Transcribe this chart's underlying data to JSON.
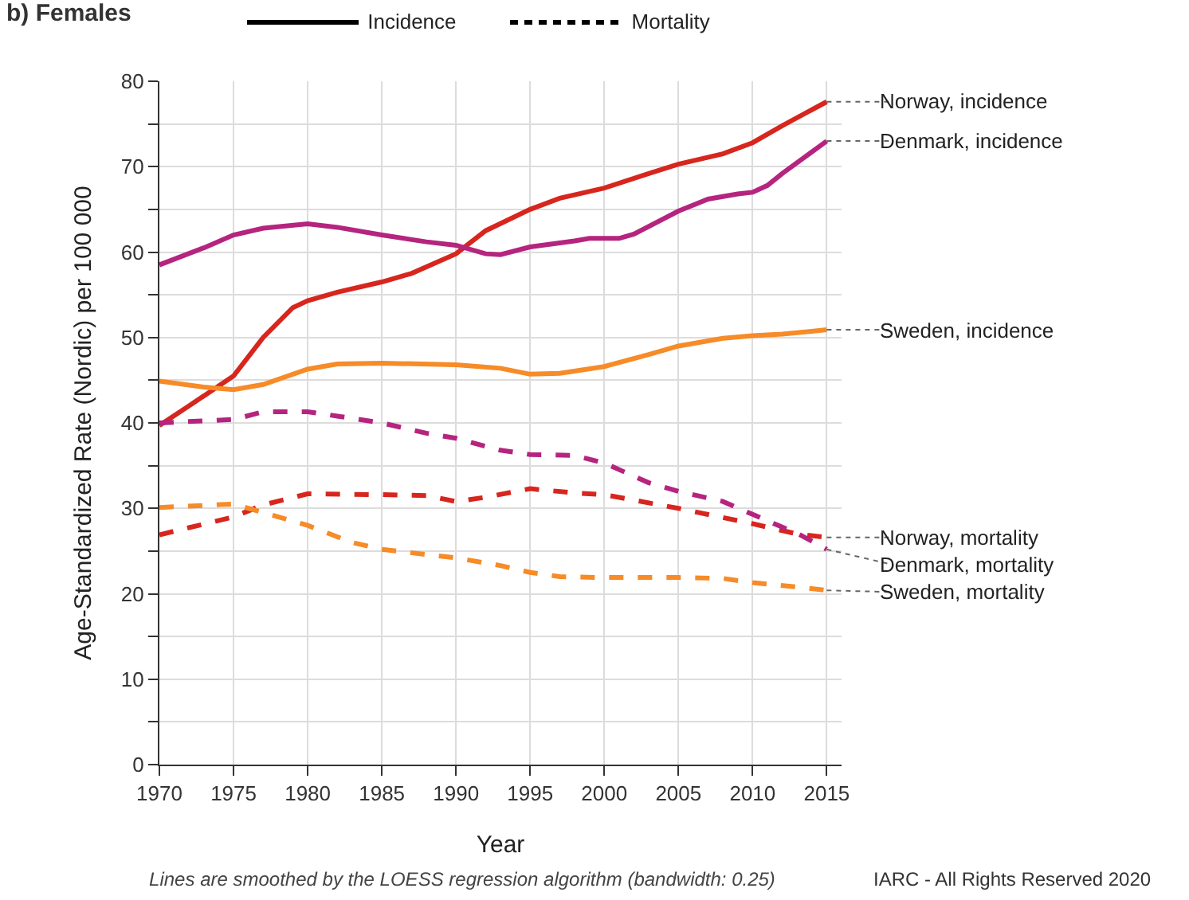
{
  "chart_data": {
    "type": "line",
    "title": "b) Females",
    "xlabel": "Year",
    "ylabel": "Age-Standardized Rate (Nordic) per 100 000",
    "annotations": [
      "Incidence",
      "Mortality",
      "Lines are smoothed by the LOESS regression algorithm (bandwidth: 0.25)",
      "IARC - All Rights Reserved 2020"
    ],
    "xlim": [
      1970,
      2016
    ],
    "xticks": [
      1970,
      1975,
      1980,
      1985,
      1990,
      1995,
      2000,
      2005,
      2010,
      2015
    ],
    "ylim": [
      0,
      80
    ],
    "yticks": [
      0,
      {
        "value": 5,
        "label": null
      },
      10,
      {
        "value": 15,
        "label": null
      },
      20,
      {
        "value": 25,
        "label": null
      },
      30,
      {
        "value": 35,
        "label": null
      },
      40,
      {
        "value": 45,
        "label": null
      },
      50,
      {
        "value": 55,
        "label": null
      },
      60,
      {
        "value": 65,
        "label": null
      },
      70,
      {
        "value": 75,
        "label": null
      },
      80
    ],
    "grid": true,
    "marker": "none",
    "series": [
      {
        "name": "Norway, incidence",
        "color": "#d7261e",
        "line_style": "solid",
        "x": [
          1970,
          1972,
          1975,
          1977,
          1979,
          1980,
          1982,
          1985,
          1987,
          1990,
          1992,
          1995,
          1997,
          2000,
          2003,
          2005,
          2008,
          2010,
          2012,
          2015
        ],
        "values": [
          39.7,
          42,
          45.5,
          50,
          53.5,
          54.3,
          55.3,
          56.5,
          57.5,
          59.8,
          62.5,
          65,
          66.3,
          67.5,
          69.2,
          70.3,
          71.5,
          72.8,
          74.8,
          77.6
        ]
      },
      {
        "name": "Denmark, incidence",
        "color": "#b5247f",
        "line_style": "solid",
        "x": [
          1970,
          1973,
          1975,
          1977,
          1980,
          1982,
          1985,
          1988,
          1990,
          1992,
          1993,
          1995,
          1998,
          1999,
          2001,
          2002,
          2005,
          2007,
          2009,
          2010,
          2011,
          2012,
          2015
        ],
        "values": [
          58.5,
          60.5,
          62,
          62.8,
          63.3,
          62.9,
          62,
          61.2,
          60.8,
          59.8,
          59.7,
          60.6,
          61.3,
          61.6,
          61.6,
          62.1,
          64.8,
          66.2,
          66.8,
          67,
          67.8,
          69.2,
          73
        ]
      },
      {
        "name": "Sweden, incidence",
        "color": "#f68b28",
        "line_style": "solid",
        "x": [
          1970,
          1973,
          1975,
          1977,
          1980,
          1982,
          1985,
          1990,
          1993,
          1995,
          1997,
          2000,
          2003,
          2005,
          2008,
          2010,
          2012,
          2015
        ],
        "values": [
          44.9,
          44.2,
          43.9,
          44.5,
          46.3,
          46.9,
          47,
          46.8,
          46.4,
          45.7,
          45.8,
          46.6,
          48,
          49,
          49.9,
          50.2,
          50.4,
          50.9
        ]
      },
      {
        "name": "Norway, mortality",
        "color": "#d7261e",
        "line_style": "dashed",
        "x": [
          1970,
          1975,
          1977,
          1980,
          1985,
          1988,
          1990,
          1992,
          1995,
          1998,
          2000,
          2005,
          2010,
          2013,
          2015
        ],
        "values": [
          26.9,
          29,
          30.4,
          31.7,
          31.6,
          31.5,
          30.8,
          31.3,
          32.3,
          31.8,
          31.6,
          30,
          28.2,
          27,
          26.6
        ]
      },
      {
        "name": "Denmark, mortality",
        "color": "#b5247f",
        "line_style": "dashed",
        "x": [
          1970,
          1975,
          1977,
          1980,
          1982,
          1985,
          1988,
          1990,
          1993,
          1995,
          1998,
          2000,
          2003,
          2005,
          2008,
          2010,
          2012,
          2013,
          2015
        ],
        "values": [
          40,
          40.4,
          41.3,
          41.3,
          40.8,
          40,
          38.8,
          38.2,
          36.8,
          36.3,
          36.2,
          35.3,
          33,
          32,
          30.8,
          29.3,
          27.8,
          27.1,
          25.2
        ]
      },
      {
        "name": "Sweden, mortality",
        "color": "#f68b28",
        "line_style": "dashed",
        "x": [
          1970,
          1975,
          1977,
          1980,
          1983,
          1985,
          1990,
          1993,
          1995,
          1997,
          2000,
          2005,
          2008,
          2010,
          2013,
          2015
        ],
        "values": [
          30.1,
          30.5,
          29.5,
          28,
          26,
          25.2,
          24.2,
          23.3,
          22.5,
          22,
          21.9,
          21.9,
          21.8,
          21.3,
          20.8,
          20.4
        ]
      }
    ]
  }
}
